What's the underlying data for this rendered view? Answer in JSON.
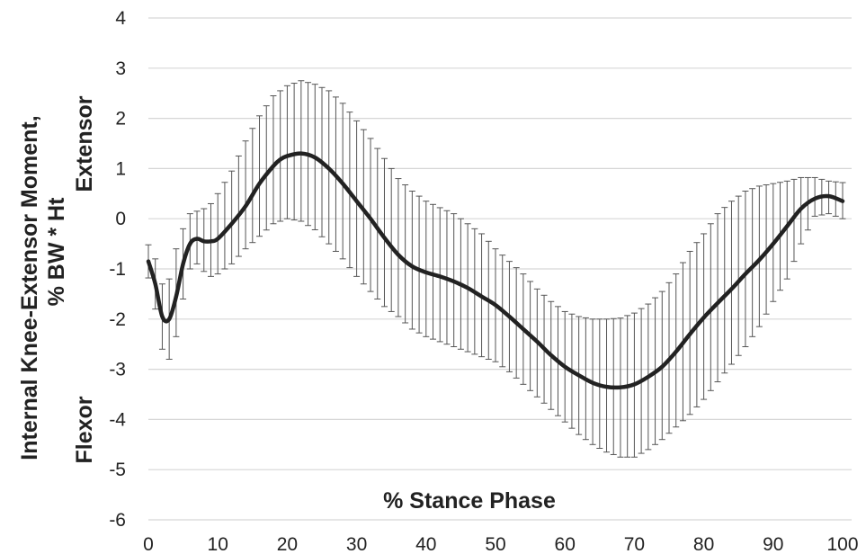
{
  "chart_data": {
    "type": "line",
    "title": "",
    "xlabel": "% Stance Phase",
    "ylabel": [
      "Internal Knee-Extensor  Moment,",
      "% BW * Ht"
    ],
    "annotations": {
      "upper": "Extensor",
      "lower": "Flexor"
    },
    "xlim": [
      0,
      100
    ],
    "ylim": [
      -6,
      4
    ],
    "x_ticks": [
      "0",
      "10",
      "20",
      "30",
      "40",
      "50",
      "60",
      "70",
      "80",
      "90",
      "100"
    ],
    "y_ticks": [
      "4",
      "3",
      "2",
      "1",
      "0",
      "-1",
      "-2",
      "-3",
      "-4",
      "-5",
      "-6"
    ],
    "grid": "horizontal",
    "legend": "none",
    "line_color": "#222222",
    "error_bar_color": "#555555",
    "series": [
      {
        "x": [
          0,
          1,
          2,
          3,
          4,
          5,
          6,
          7,
          8,
          9,
          10,
          12,
          14,
          16,
          18,
          19,
          20,
          22,
          24,
          26,
          28,
          30,
          32,
          34,
          36,
          38,
          40,
          42,
          44,
          46,
          48,
          50,
          52,
          54,
          56,
          58,
          60,
          62,
          64,
          66,
          68,
          70,
          72,
          74,
          76,
          78,
          80,
          82,
          84,
          86,
          88,
          90,
          92,
          94,
          96,
          98,
          100
        ],
        "mean": [
          -0.85,
          -1.3,
          -1.95,
          -2.0,
          -1.55,
          -0.9,
          -0.5,
          -0.4,
          -0.45,
          -0.45,
          -0.4,
          -0.1,
          0.25,
          0.7,
          1.05,
          1.18,
          1.25,
          1.3,
          1.22,
          1.0,
          0.7,
          0.35,
          0.0,
          -0.38,
          -0.72,
          -0.95,
          -1.07,
          -1.15,
          -1.25,
          -1.38,
          -1.55,
          -1.72,
          -1.95,
          -2.2,
          -2.45,
          -2.72,
          -2.95,
          -3.12,
          -3.27,
          -3.35,
          -3.36,
          -3.3,
          -3.15,
          -2.95,
          -2.65,
          -2.3,
          -1.97,
          -1.68,
          -1.4,
          -1.1,
          -0.82,
          -0.5,
          -0.15,
          0.2,
          0.4,
          0.45,
          0.35
        ],
        "upper": [
          -0.52,
          -0.8,
          -1.3,
          -1.2,
          -0.6,
          -0.2,
          0.1,
          0.15,
          0.2,
          0.3,
          0.5,
          0.95,
          1.55,
          2.05,
          2.45,
          2.55,
          2.65,
          2.75,
          2.68,
          2.55,
          2.3,
          1.95,
          1.6,
          1.2,
          0.8,
          0.55,
          0.35,
          0.22,
          0.1,
          -0.1,
          -0.3,
          -0.6,
          -0.85,
          -1.1,
          -1.4,
          -1.65,
          -1.85,
          -1.95,
          -2.0,
          -2.0,
          -1.98,
          -1.88,
          -1.7,
          -1.45,
          -1.1,
          -0.65,
          -0.3,
          0.1,
          0.35,
          0.55,
          0.65,
          0.7,
          0.75,
          0.82,
          0.82,
          0.75,
          0.72
        ],
        "lower": [
          -1.18,
          -1.8,
          -2.6,
          -2.8,
          -2.35,
          -1.6,
          -1.0,
          -0.9,
          -1.05,
          -1.15,
          -1.1,
          -0.9,
          -0.6,
          -0.35,
          -0.1,
          -0.05,
          0.0,
          -0.05,
          -0.22,
          -0.5,
          -0.8,
          -1.15,
          -1.45,
          -1.75,
          -1.95,
          -2.2,
          -2.35,
          -2.45,
          -2.55,
          -2.65,
          -2.75,
          -2.85,
          -3.05,
          -3.3,
          -3.55,
          -3.8,
          -4.05,
          -4.3,
          -4.5,
          -4.65,
          -4.75,
          -4.75,
          -4.6,
          -4.4,
          -4.15,
          -3.9,
          -3.6,
          -3.25,
          -2.9,
          -2.55,
          -2.15,
          -1.65,
          -1.2,
          -0.5,
          0.05,
          0.1,
          0.0
        ]
      }
    ]
  }
}
